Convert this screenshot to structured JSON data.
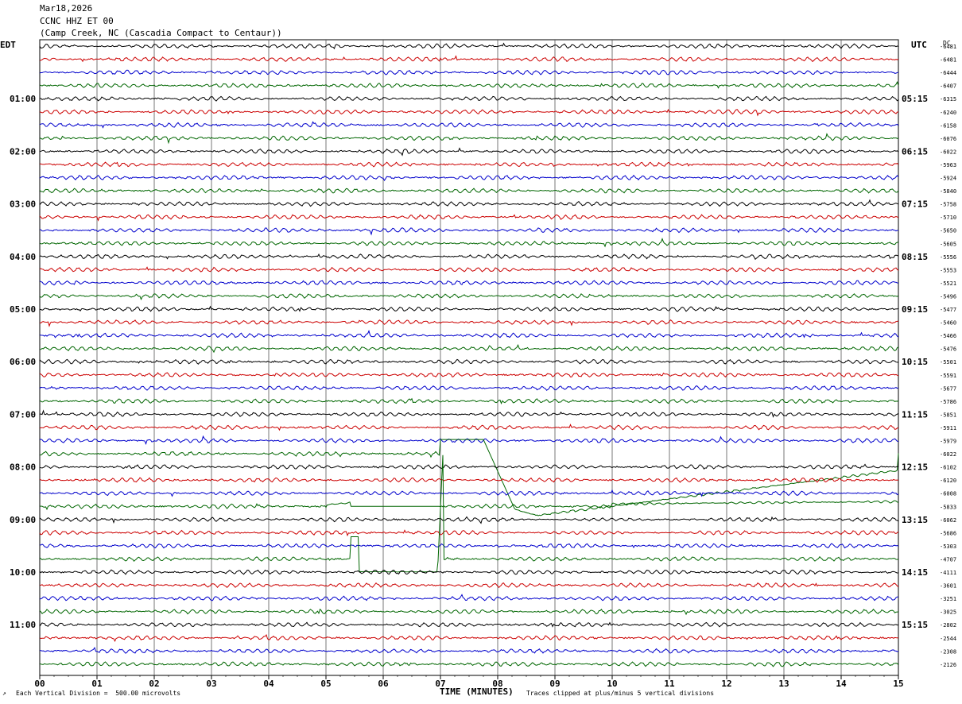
{
  "header": {
    "date": "Mar18,2026",
    "station": "CCNC HHZ ET 00",
    "location": "(Camp Creek, NC (Cascadia Compact to Centaur))"
  },
  "labels": {
    "left_tz": "EDT",
    "right_tz": "UTC",
    "dc": "DC",
    "xlabel": "TIME (MINUTES)",
    "scale_note": "Each Vertical Division =  500.00 microvolts",
    "clip_note": "Traces clipped at plus/minus 5 vertical divisions",
    "corner_mark": "↗"
  },
  "chart_data": {
    "type": "line",
    "title": "CCNC HHZ ET 00",
    "xlabel": "TIME (MINUTES)",
    "ylabel": "",
    "xlim": [
      0,
      15
    ],
    "x_ticks": [
      "00",
      "01",
      "02",
      "03",
      "04",
      "05",
      "06",
      "07",
      "08",
      "09",
      "10",
      "11",
      "12",
      "13",
      "14",
      "15"
    ],
    "left_hour_labels": [
      "01:00",
      "02:00",
      "03:00",
      "04:00",
      "05:00",
      "06:00",
      "07:00",
      "08:00",
      "09:00",
      "10:00",
      "11:00"
    ],
    "right_hour_labels": [
      "05:15",
      "06:15",
      "07:15",
      "08:15",
      "09:15",
      "10:15",
      "11:15",
      "12:15",
      "13:15",
      "14:15",
      "15:15"
    ],
    "trace_colors": [
      "#000000",
      "#cc0000",
      "#0000cc",
      "#006600"
    ],
    "dc_offsets": [
      "-6481",
      "-6481",
      "-6444",
      "-6407",
      "-6315",
      "-6240",
      "-6158",
      "-6076",
      "-6022",
      "-5963",
      "-5924",
      "-5840",
      "-5758",
      "-5710",
      "-5650",
      "-5605",
      "-5556",
      "-5553",
      "-5521",
      "-5496",
      "-5477",
      "-5460",
      "-5466",
      "-5476",
      "-5501",
      "-5591",
      "-5677",
      "-5786",
      "-5851",
      "-5911",
      "-5979",
      "-6022",
      "-6102",
      "-6120",
      "-6008",
      "-5833",
      "-6062",
      "-5686",
      "-5303",
      "-4707",
      "-4111",
      "-3601",
      "-3251",
      "-3025",
      "-2802",
      "-2544",
      "-2308",
      "-2126"
    ],
    "event": {
      "trace_index": 35,
      "start_minute": 4.9,
      "description": "large clipped offset across traces 35-39"
    },
    "grid": true
  }
}
